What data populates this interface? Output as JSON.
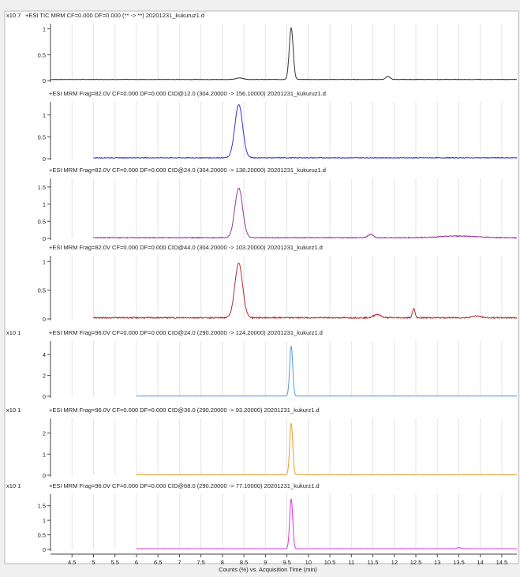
{
  "chart_data": {
    "type": "line",
    "x_axis": {
      "label": "Counts (%) vs. Acquisition Time (min)",
      "range": [
        4.0,
        14.85
      ],
      "ticks": [
        "4.5",
        "5",
        "5.5",
        "6",
        "6.5",
        "7",
        "7.5",
        "8",
        "8.5",
        "9",
        "9.5",
        "10",
        "10.5",
        "11",
        "11.5",
        "12",
        "12.5",
        "13",
        "13.5",
        "14",
        "14.5"
      ]
    },
    "panels": [
      {
        "title": "+ESI TIC MRM CF=0.000 DF=0.000 (** -> **) 20201231_kukuruz1.d",
        "scale_label": "x10 7",
        "color": "#333333",
        "ylim": [
          0,
          1.1
        ],
        "yticks": [
          "1",
          "0.5",
          "0"
        ],
        "ytick_values": [
          1,
          0.5,
          0
        ],
        "x_start": 4.0,
        "baseline": 0.02,
        "noise": 0.004,
        "peaks": [
          [
            9.6,
            1.0,
            0.045
          ],
          [
            8.4,
            0.03,
            0.08
          ],
          [
            11.85,
            0.06,
            0.05
          ]
        ]
      },
      {
        "title": "+ESI MRM Frag=82.0V CF=0.000 DF=0.000 CID@12.0 (304.20000 -> 156.10000) 20201231_kukuruz1.d",
        "scale_label": "",
        "color": "#3333cc",
        "ylim": [
          0,
          1.3
        ],
        "yticks": [
          "1",
          "0.5",
          "0"
        ],
        "ytick_values": [
          1,
          0.5,
          0
        ],
        "x_start": 5.0,
        "baseline": 0.02,
        "noise": 0.008,
        "peaks": [
          [
            8.38,
            1.22,
            0.09
          ]
        ]
      },
      {
        "title": "+ESI MRM Frag=82.0V CF=0.000 DF=0.000 CID@24.0 (304.20000 -> 138.20000) 20201231_kukuruz1.d",
        "scale_label": "",
        "color": "#993399",
        "ylim": [
          0,
          1.75
        ],
        "yticks": [
          "1.5",
          "1",
          "0.5",
          "0"
        ],
        "ytick_values": [
          1.5,
          1,
          0.5,
          0
        ],
        "x_start": 5.0,
        "baseline": 0.02,
        "noise": 0.012,
        "peaks": [
          [
            8.38,
            1.45,
            0.09
          ],
          [
            11.45,
            0.1,
            0.06
          ],
          [
            13.5,
            0.05,
            0.4
          ]
        ]
      },
      {
        "title": "+ESI MRM Frag=82.0V CF=0.000 DF=0.000 CID@44.0 (304.20000 -> 103.20000) 20201231_kukurz1.d",
        "scale_label": "",
        "color": "#b03030",
        "ylim": [
          0,
          1.1
        ],
        "yticks": [
          "1",
          "0.5",
          "0"
        ],
        "ytick_values": [
          1,
          0.5,
          0
        ],
        "x_start": 5.0,
        "baseline": 0.02,
        "noise": 0.01,
        "peaks": [
          [
            8.38,
            0.95,
            0.09
          ],
          [
            12.45,
            0.16,
            0.03
          ],
          [
            11.6,
            0.06,
            0.08
          ],
          [
            13.9,
            0.03,
            0.1
          ]
        ]
      },
      {
        "title": "+ESI MRM Frag=96.0V CF=0.000 DF=0.000 CID@24.0 (290.20000 -> 124.20000) 20201231_kukurz1.d",
        "scale_label": "x10 1",
        "color": "#5599dd",
        "ylim": [
          0,
          5.3
        ],
        "yticks": [
          "4",
          "2",
          "0"
        ],
        "ytick_values": [
          4,
          2,
          0
        ],
        "x_start": 6.0,
        "baseline": 0.02,
        "noise": 0.01,
        "peaks": [
          [
            9.6,
            4.8,
            0.035
          ]
        ]
      },
      {
        "title": "+ESI MRM Frag=96.0V CF=0.000 DF=0.000 CID@36.0 (290.20000 -> 93.20000) 20201231_kukurz1.d",
        "scale_label": "x10 1",
        "color": "#e8a030",
        "ylim": [
          0,
          2.7
        ],
        "yticks": [
          "2",
          "1",
          "0"
        ],
        "ytick_values": [
          2,
          1,
          0
        ],
        "x_start": 6.0,
        "baseline": 0.02,
        "noise": 0.008,
        "peaks": [
          [
            9.6,
            2.45,
            0.035
          ]
        ]
      },
      {
        "title": "+ESI MRM Frag=96.0V CF=0.000 DF=0.000 CID@68.0 (290.20000 -> 77.10000) 20201231_kukurz1.d",
        "scale_label": "x10 1",
        "color": "#dd33dd",
        "ylim": [
          0,
          1.9
        ],
        "yticks": [
          "1.5",
          "1",
          "0.5",
          "0"
        ],
        "ytick_values": [
          1.5,
          1,
          0.5,
          0
        ],
        "x_start": 6.0,
        "baseline": 0.02,
        "noise": 0.006,
        "peaks": [
          [
            9.6,
            1.72,
            0.035
          ],
          [
            13.5,
            0.04,
            0.05
          ]
        ]
      }
    ]
  }
}
